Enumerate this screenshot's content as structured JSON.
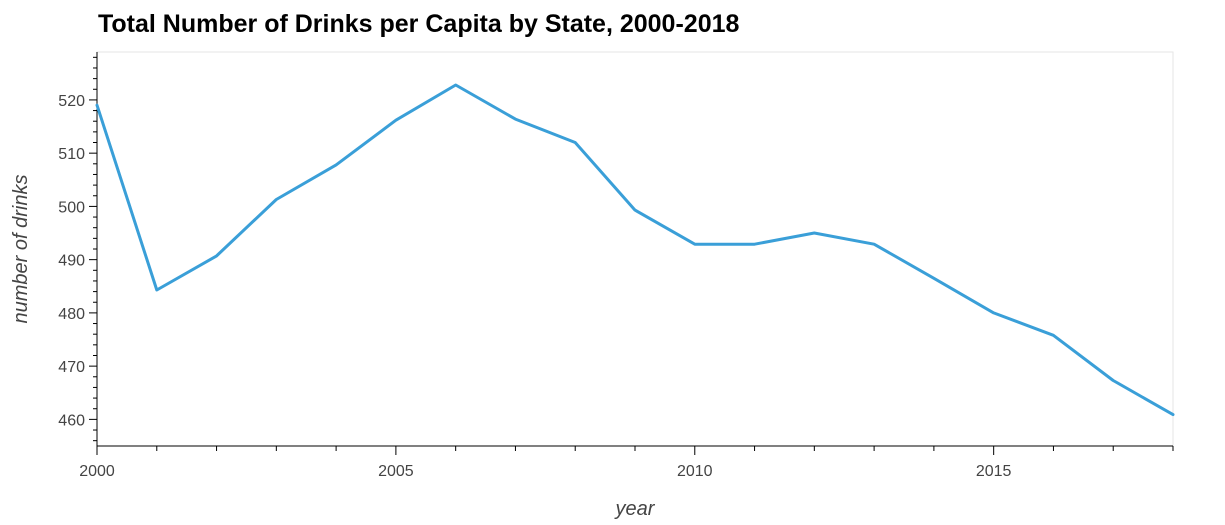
{
  "chart_data": {
    "type": "line",
    "title": "Total Number of Drinks per Capita by State, 2000-2018",
    "xlabel": "year",
    "ylabel": "number of drinks",
    "xlim": [
      2000,
      2018
    ],
    "ylim": [
      455,
      529
    ],
    "x_ticks": [
      2000,
      2005,
      2010,
      2015
    ],
    "y_ticks": [
      460,
      470,
      480,
      490,
      500,
      510,
      520
    ],
    "grid": false,
    "line_color": "#3a9fd8",
    "series": [
      {
        "x": [
          2000,
          2001,
          2002,
          2003,
          2004,
          2005,
          2006,
          2007,
          2008,
          2009,
          2010,
          2011,
          2012,
          2013,
          2014,
          2015,
          2016,
          2017,
          2018
        ],
        "values": [
          519,
          484.3,
          490.7,
          501.3,
          507.8,
          516.2,
          522.8,
          516.4,
          512,
          499.3,
          492.9,
          492.9,
          495,
          492.9,
          486.5,
          480,
          475.8,
          467.3,
          460.9
        ]
      }
    ]
  }
}
